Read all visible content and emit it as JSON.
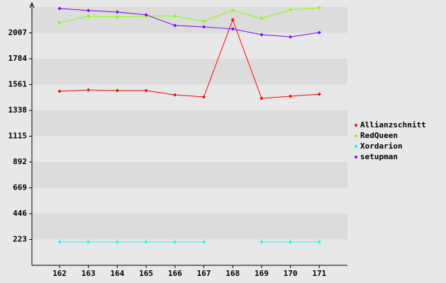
{
  "chart_data": {
    "type": "line",
    "categories": [
      "162",
      "163",
      "164",
      "165",
      "166",
      "167",
      "168",
      "169",
      "170",
      "171"
    ],
    "series": [
      {
        "name": "Allianzschnitt",
        "color": "#ff0000",
        "values": [
          1503,
          1515,
          1509,
          1509,
          1472,
          1454,
          2120,
          1442,
          1460,
          1478
        ]
      },
      {
        "name": "RedQueen",
        "color": "#80ff00",
        "values": [
          2096,
          2151,
          2145,
          2151,
          2151,
          2108,
          2200,
          2132,
          2206,
          2224
        ]
      },
      {
        "name": "Xordarion",
        "color": "#00ffff",
        "values": [
          202,
          202,
          202,
          202,
          202,
          202,
          null,
          202,
          202,
          202
        ]
      },
      {
        "name": "setupman",
        "color": "#8000ff",
        "values": [
          2218,
          2200,
          2187,
          2163,
          2071,
          2059,
          2041,
          1992,
          1973,
          2010
        ]
      }
    ],
    "ylim": [
      0,
      2230
    ],
    "yticks": [
      223,
      446,
      669,
      892,
      1115,
      1338,
      1561,
      1784,
      2007
    ],
    "grid": true,
    "legend": "right"
  }
}
